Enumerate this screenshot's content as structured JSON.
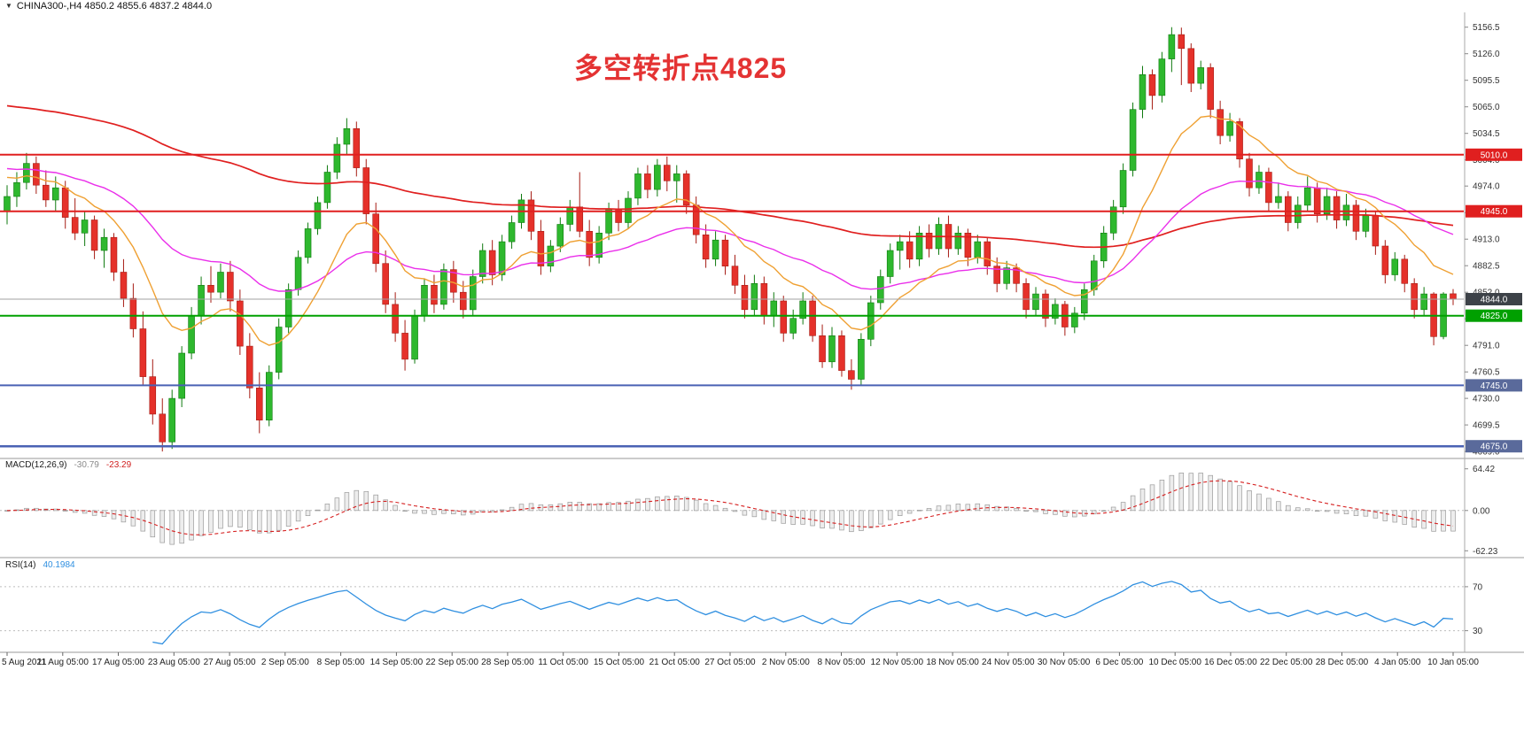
{
  "header": {
    "dropdown_icon": "▼",
    "symbol_title": "CHINA300-,H4 4850.2 4855.6 4837.2 4844.0"
  },
  "annotation": {
    "text": "多空转折点4825",
    "color": "#e43333"
  },
  "chart_data": {
    "type": "candlestick",
    "symbol": "CHINA300-",
    "timeframe": "H4",
    "main": {
      "ylim": [
        4661,
        5173.5
      ],
      "axis_ticks": [
        5156.5,
        5126.0,
        5095.5,
        5065.0,
        5034.5,
        5004.0,
        4974.0,
        4943.5,
        4913.0,
        4882.5,
        4852.0,
        4821.5,
        4791.0,
        4760.5,
        4730.0,
        4699.5,
        4669.0
      ],
      "colors": {
        "up": "#2eb82e",
        "up_edge": "#0f7a0f",
        "down": "#e5312a",
        "down_edge": "#a61c14"
      },
      "candles": [
        [
          4945,
          4975,
          4930,
          4962
        ],
        [
          4962,
          4990,
          4950,
          4978
        ],
        [
          4978,
          5012,
          4970,
          5000
        ],
        [
          5000,
          5008,
          4965,
          4975
        ],
        [
          4975,
          4992,
          4950,
          4958
        ],
        [
          4958,
          4985,
          4945,
          4972
        ],
        [
          4972,
          4980,
          4925,
          4938
        ],
        [
          4938,
          4960,
          4912,
          4920
        ],
        [
          4920,
          4945,
          4905,
          4935
        ],
        [
          4935,
          4940,
          4890,
          4900
        ],
        [
          4900,
          4925,
          4880,
          4915
        ],
        [
          4915,
          4920,
          4865,
          4875
        ],
        [
          4875,
          4890,
          4835,
          4845
        ],
        [
          4845,
          4862,
          4800,
          4810
        ],
        [
          4810,
          4830,
          4745,
          4755
        ],
        [
          4755,
          4775,
          4700,
          4712
        ],
        [
          4712,
          4730,
          4669,
          4680
        ],
        [
          4680,
          4740,
          4672,
          4730
        ],
        [
          4730,
          4790,
          4720,
          4782
        ],
        [
          4782,
          4835,
          4775,
          4825
        ],
        [
          4825,
          4870,
          4815,
          4860
        ],
        [
          4860,
          4882,
          4840,
          4852
        ],
        [
          4852,
          4885,
          4845,
          4875
        ],
        [
          4875,
          4888,
          4830,
          4842
        ],
        [
          4842,
          4855,
          4780,
          4790
        ],
        [
          4790,
          4805,
          4730,
          4742
        ],
        [
          4742,
          4760,
          4690,
          4705
        ],
        [
          4705,
          4768,
          4698,
          4760
        ],
        [
          4760,
          4822,
          4752,
          4812
        ],
        [
          4812,
          4862,
          4805,
          4855
        ],
        [
          4855,
          4900,
          4848,
          4892
        ],
        [
          4892,
          4932,
          4885,
          4925
        ],
        [
          4925,
          4962,
          4918,
          4955
        ],
        [
          4955,
          4998,
          4948,
          4990
        ],
        [
          4990,
          5030,
          4982,
          5022
        ],
        [
          5022,
          5052,
          5010,
          5040
        ],
        [
          5040,
          5048,
          4985,
          4995
        ],
        [
          4995,
          5005,
          4930,
          4942
        ],
        [
          4942,
          4955,
          4875,
          4885
        ],
        [
          4885,
          4900,
          4828,
          4838
        ],
        [
          4838,
          4852,
          4795,
          4805
        ],
        [
          4805,
          4820,
          4762,
          4775
        ],
        [
          4775,
          4832,
          4770,
          4825
        ],
        [
          4825,
          4868,
          4818,
          4860
        ],
        [
          4860,
          4872,
          4828,
          4838
        ],
        [
          4838,
          4885,
          4832,
          4878
        ],
        [
          4878,
          4888,
          4840,
          4852
        ],
        [
          4852,
          4865,
          4822,
          4832
        ],
        [
          4832,
          4878,
          4825,
          4870
        ],
        [
          4870,
          4908,
          4862,
          4900
        ],
        [
          4900,
          4912,
          4860,
          4872
        ],
        [
          4872,
          4918,
          4865,
          4910
        ],
        [
          4910,
          4940,
          4902,
          4932
        ],
        [
          4932,
          4965,
          4925,
          4958
        ],
        [
          4958,
          4968,
          4912,
          4922
        ],
        [
          4922,
          4935,
          4872,
          4882
        ],
        [
          4882,
          4912,
          4875,
          4905
        ],
        [
          4905,
          4938,
          4898,
          4930
        ],
        [
          4930,
          4958,
          4922,
          4950
        ],
        [
          4950,
          4990,
          4915,
          4922
        ],
        [
          4922,
          4935,
          4882,
          4892
        ],
        [
          4892,
          4928,
          4885,
          4920
        ],
        [
          4920,
          4955,
          4912,
          4948
        ],
        [
          4948,
          4958,
          4922,
          4932
        ],
        [
          4932,
          4968,
          4925,
          4960
        ],
        [
          4960,
          4995,
          4952,
          4988
        ],
        [
          4988,
          4998,
          4960,
          4970
        ],
        [
          4970,
          5005,
          4962,
          4998
        ],
        [
          4998,
          5008,
          4968,
          4980
        ],
        [
          4980,
          4998,
          4955,
          4988
        ],
        [
          4988,
          4992,
          4942,
          4952
        ],
        [
          4952,
          4962,
          4908,
          4918
        ],
        [
          4918,
          4930,
          4880,
          4890
        ],
        [
          4890,
          4922,
          4882,
          4912
        ],
        [
          4912,
          4918,
          4872,
          4882
        ],
        [
          4882,
          4895,
          4850,
          4860
        ],
        [
          4860,
          4872,
          4822,
          4832
        ],
        [
          4832,
          4872,
          4825,
          4862
        ],
        [
          4862,
          4870,
          4815,
          4825
        ],
        [
          4825,
          4852,
          4812,
          4842
        ],
        [
          4842,
          4848,
          4795,
          4805
        ],
        [
          4805,
          4832,
          4798,
          4822
        ],
        [
          4822,
          4852,
          4815,
          4842
        ],
        [
          4842,
          4848,
          4795,
          4802
        ],
        [
          4802,
          4815,
          4765,
          4772
        ],
        [
          4772,
          4812,
          4765,
          4802
        ],
        [
          4802,
          4808,
          4755,
          4762
        ],
        [
          4762,
          4775,
          4740,
          4752
        ],
        [
          4752,
          4805,
          4745,
          4798
        ],
        [
          4798,
          4848,
          4790,
          4840
        ],
        [
          4840,
          4878,
          4832,
          4870
        ],
        [
          4870,
          4908,
          4862,
          4900
        ],
        [
          4900,
          4918,
          4878,
          4910
        ],
        [
          4910,
          4922,
          4880,
          4890
        ],
        [
          4890,
          4928,
          4882,
          4920
        ],
        [
          4920,
          4930,
          4892,
          4902
        ],
        [
          4902,
          4938,
          4895,
          4930
        ],
        [
          4930,
          4940,
          4892,
          4902
        ],
        [
          4902,
          4928,
          4895,
          4920
        ],
        [
          4920,
          4925,
          4882,
          4892
        ],
        [
          4892,
          4918,
          4885,
          4910
        ],
        [
          4910,
          4915,
          4872,
          4882
        ],
        [
          4882,
          4892,
          4852,
          4862
        ],
        [
          4862,
          4888,
          4855,
          4880
        ],
        [
          4880,
          4885,
          4852,
          4862
        ],
        [
          4862,
          4868,
          4822,
          4832
        ],
        [
          4832,
          4858,
          4825,
          4850
        ],
        [
          4850,
          4855,
          4812,
          4822
        ],
        [
          4822,
          4845,
          4815,
          4838
        ],
        [
          4838,
          4842,
          4802,
          4812
        ],
        [
          4812,
          4835,
          4805,
          4828
        ],
        [
          4828,
          4862,
          4820,
          4855
        ],
        [
          4855,
          4895,
          4848,
          4888
        ],
        [
          4888,
          4928,
          4880,
          4920
        ],
        [
          4920,
          4958,
          4912,
          4950
        ],
        [
          4950,
          5000,
          4942,
          4992
        ],
        [
          4992,
          5070,
          4985,
          5062
        ],
        [
          5062,
          5112,
          5052,
          5102
        ],
        [
          5102,
          5108,
          5062,
          5078
        ],
        [
          5078,
          5128,
          5070,
          5120
        ],
        [
          5120,
          5156.5,
          5105,
          5148
        ],
        [
          5148,
          5156,
          5090,
          5132
        ],
        [
          5132,
          5138,
          5082,
          5092
        ],
        [
          5092,
          5118,
          5085,
          5110
        ],
        [
          5110,
          5115,
          5052,
          5062
        ],
        [
          5062,
          5072,
          5022,
          5032
        ],
        [
          5032,
          5058,
          5025,
          5048
        ],
        [
          5048,
          5052,
          4995,
          5005
        ],
        [
          5005,
          5012,
          4962,
          4972
        ],
        [
          4972,
          4998,
          4965,
          4990
        ],
        [
          4990,
          4995,
          4945,
          4955
        ],
        [
          4955,
          4978,
          4948,
          4962
        ],
        [
          4962,
          4968,
          4922,
          4932
        ],
        [
          4932,
          4962,
          4925,
          4952
        ],
        [
          4952,
          4985,
          4945,
          4972
        ],
        [
          4972,
          4978,
          4932,
          4942
        ],
        [
          4942,
          4972,
          4935,
          4962
        ],
        [
          4962,
          4968,
          4925,
          4935
        ],
        [
          4935,
          4965,
          4928,
          4952
        ],
        [
          4952,
          4958,
          4912,
          4922
        ],
        [
          4922,
          4948,
          4915,
          4940
        ],
        [
          4940,
          4945,
          4895,
          4905
        ],
        [
          4905,
          4912,
          4862,
          4872
        ],
        [
          4872,
          4898,
          4865,
          4890
        ],
        [
          4890,
          4895,
          4852,
          4862
        ],
        [
          4862,
          4868,
          4822,
          4832
        ],
        [
          4832,
          4858,
          4825,
          4850
        ],
        [
          4850,
          4852,
          4791,
          4801
        ],
        [
          4801,
          4852,
          4798,
          4850
        ],
        [
          4850.2,
          4855.6,
          4837.2,
          4844
        ]
      ],
      "moving_averages": [
        {
          "name": "ma-slow",
          "type": "ema",
          "period": 120,
          "seed": 5068,
          "color": "#e01f1f",
          "width": 1.7
        },
        {
          "name": "ma-medium",
          "type": "ema",
          "period": 34,
          "seed": 4996,
          "color": "#ea2fea",
          "width": 1.4
        },
        {
          "name": "ma-fast",
          "type": "ema",
          "period": 12,
          "seed": 4988,
          "color": "#efa032",
          "width": 1.4
        }
      ],
      "hlines": [
        {
          "price": 5010.0,
          "label": "5010.0",
          "color": "#e01f1f",
          "width": 2,
          "badge_bg": "#e01f1f",
          "badge_text": "#ffffff"
        },
        {
          "price": 4945.0,
          "label": "4945.0",
          "color": "#e01f1f",
          "width": 2,
          "badge_bg": "#e01f1f",
          "badge_text": "#ffffff"
        },
        {
          "price": 4844.0,
          "label": "4844.0",
          "color": "#a0a0a0",
          "width": 1,
          "badge_bg": "#3d4248",
          "badge_text": "#ffffff"
        },
        {
          "price": 4825.0,
          "label": "4825.0",
          "color": "#00a000",
          "width": 2,
          "badge_bg": "#00a000",
          "badge_text": "#ffffff"
        },
        {
          "price": 4745.0,
          "label": "4745.0",
          "color": "#4a62b4",
          "width": 2,
          "badge_bg": "#5a6a9b",
          "badge_text": "#ffffff"
        },
        {
          "price": 4675.0,
          "label": "4675.0",
          "color": "#4a62b4",
          "width": 2.5,
          "badge_bg": "#5a6a9b",
          "badge_text": "#ffffff"
        }
      ]
    },
    "macd": {
      "label": "MACD(12,26,9)",
      "value_main": "-30.79",
      "value_signal": "-23.29",
      "fast": 12,
      "slow": 26,
      "signal": 9,
      "ylim": [
        -70,
        75
      ],
      "axis_ticks": [
        64.42,
        0,
        -62.23
      ],
      "histogram_color": "#ededed",
      "histogram_edge": "#9a9a9a",
      "signal_color": "#d62020",
      "zero_line_color": "#bbbbbb"
    },
    "rsi": {
      "label": "RSI(14)",
      "value": "40.1984",
      "period": 14,
      "ylim": [
        12,
        94
      ],
      "levels": [
        70,
        30
      ],
      "axis_ticks": [
        70,
        30
      ],
      "line_color": "#2f8fe0",
      "level_color": "#bdbdbd"
    },
    "time_axis": {
      "labels": [
        "5 Aug 2021",
        "11 Aug 05:00",
        "17 Aug 05:00",
        "23 Aug 05:00",
        "27 Aug 05:00",
        "2 Sep 05:00",
        "8 Sep 05:00",
        "14 Sep 05:00",
        "22 Sep 05:00",
        "28 Sep 05:00",
        "11 Oct 05:00",
        "15 Oct 05:00",
        "21 Oct 05:00",
        "27 Oct 05:00",
        "2 Nov 05:00",
        "8 Nov 05:00",
        "12 Nov 05:00",
        "18 Nov 05:00",
        "24 Nov 05:00",
        "30 Nov 05:00",
        "6 Dec 05:00",
        "10 Dec 05:00",
        "16 Dec 05:00",
        "22 Dec 05:00",
        "28 Dec 05:00",
        "4 Jan 05:00",
        "10 Jan 05:00"
      ]
    }
  }
}
